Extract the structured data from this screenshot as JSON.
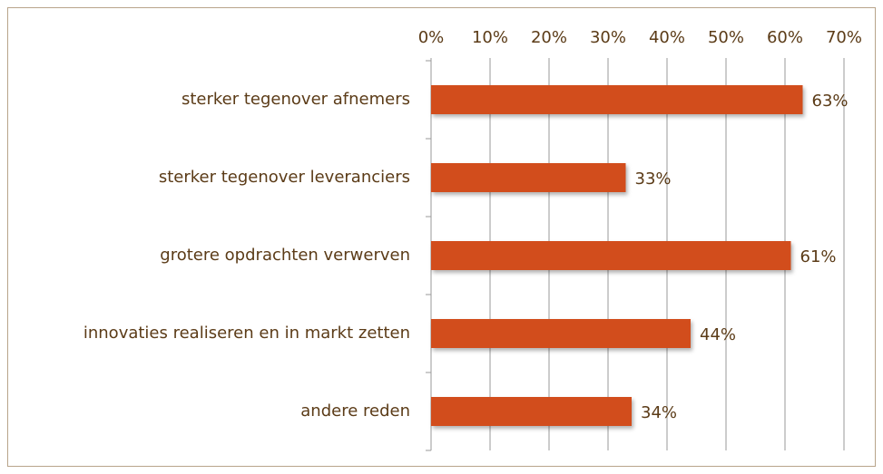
{
  "chart_data": {
    "type": "bar",
    "orientation": "horizontal",
    "categories": [
      "sterker tegenover afnemers",
      "sterker tegenover leveranciers",
      "grotere opdrachten verwerven",
      "innovaties realiseren en in markt zetten",
      "andere reden"
    ],
    "values": [
      63,
      33,
      61,
      44,
      34
    ],
    "value_labels": [
      "63%",
      "33%",
      "61%",
      "44%",
      "34%"
    ],
    "color": "#d24e1b",
    "xlim": [
      0,
      70
    ],
    "xticks": [
      {
        "value": 0,
        "label": "0%"
      },
      {
        "value": 10,
        "label": "10%"
      },
      {
        "value": 20,
        "label": "20%"
      },
      {
        "value": 30,
        "label": "30%"
      },
      {
        "value": 40,
        "label": "40%"
      },
      {
        "value": 50,
        "label": "50%"
      },
      {
        "value": 60,
        "label": "60%"
      },
      {
        "value": 70,
        "label": "70%"
      }
    ],
    "grid": true
  }
}
